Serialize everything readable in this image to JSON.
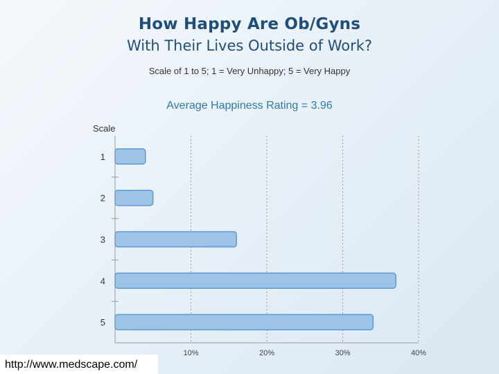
{
  "chart_data": {
    "type": "bar",
    "orientation": "horizontal",
    "title": "How Happy Are Ob/Gyns",
    "subtitle": "With Their Lives Outside of Work?",
    "note": "Scale of 1 to 5; 1 = Very Unhappy; 5 = Very Happy",
    "annotation": "Average Happiness Rating = 3.96",
    "ylabel": "Scale",
    "categories": [
      "1",
      "2",
      "3",
      "4",
      "5"
    ],
    "values": [
      4,
      5,
      16,
      37,
      34
    ],
    "xlim": [
      0,
      40
    ],
    "xticks": [
      "10%",
      "20%",
      "30%",
      "40%"
    ],
    "xtick_values": [
      10,
      20,
      30,
      40
    ],
    "grid": true,
    "bar_color": "#9dc3e6",
    "bar_border": "#5b9bd5"
  },
  "footer": {
    "url": "http://www.medscape.com/"
  }
}
